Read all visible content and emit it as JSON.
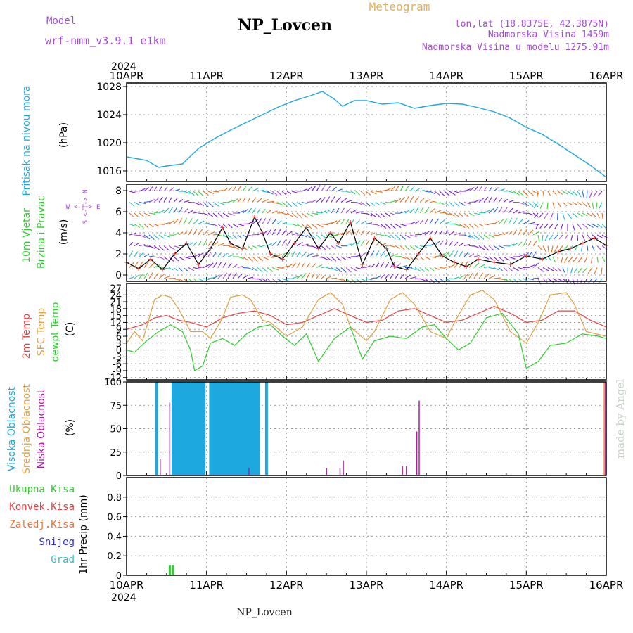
{
  "header": {
    "model_label": "Model",
    "model_name": "wrf-nmm_v3.9.1 e1km",
    "station": "NP_Lovcen",
    "title": "Meteogram",
    "lonlat": "lon,lat (18.8375E, 42.3875N)",
    "elev": "Nadmorska Visina 1459m",
    "elev_model": "Nadmorska Visina u modelu 1275.91m",
    "footer_station": "NP_Lovcen",
    "watermark": "made by Angel"
  },
  "time_axis": {
    "year": "2024",
    "ticks": [
      "10APR",
      "11APR",
      "12APR",
      "13APR",
      "14APR",
      "15APR",
      "16APR"
    ]
  },
  "labels": {
    "p1_name": "Pritisak na nivou mora",
    "p1_unit": "(hPa)",
    "p2_name1": "10m Vjetar",
    "p2_name2": "Brzina i Pravac",
    "p2_unit": "(m/s)",
    "p2_compass": "W <-|-> E",
    "p2_compass_v": "S <-|-> N",
    "p3_temp": "2m Temp",
    "p3_sfc": "SFC Temp",
    "p3_dew": "dewpt Temp",
    "p3_unit": "(C)",
    "p4_high": "Visoka Oblacnost",
    "p4_mid": "Srednja Oblacnost",
    "p4_low": "Niska Oblacnost",
    "p4_unit": "(%)",
    "p5_total": "Ukupna Kisa",
    "p5_conv": "Konvek.Kisa",
    "p5_frz": "Zaledj.Kisa",
    "p5_snow": "Snijeg",
    "p5_grad": "Grad",
    "p5_unit": "1hr Precip (mm)"
  },
  "colors": {
    "pressure": "#1ea8e0",
    "temp2m": "#e84040",
    "sfc": "#e0a040",
    "dew": "#30cc30",
    "high_cloud": "#1ea8e0",
    "mid_cloud": "#e0a040",
    "low_cloud": "#b01aa0",
    "precip": "#30cc30",
    "purple": "#a24ad6"
  },
  "chart_data": [
    {
      "type": "line",
      "x_unit": "day",
      "xlim": [
        0,
        6
      ],
      "ylim": [
        1014.5,
        1028.5
      ],
      "yticks": [
        1016,
        1020,
        1024,
        1028
      ],
      "grid": true,
      "series": [
        {
          "x": [
            0,
            0.25,
            0.4,
            0.5,
            0.7,
            0.9,
            1.1,
            1.3,
            1.5,
            1.7,
            1.9,
            2.1,
            2.3,
            2.45,
            2.6,
            2.7,
            2.85,
            3.0,
            3.2,
            3.4,
            3.6,
            3.8,
            4.0,
            4.2,
            4.4,
            4.6,
            4.8,
            5.0,
            5.2,
            5.4,
            5.6,
            5.8,
            6.0
          ],
          "y": [
            1018.0,
            1017.5,
            1016.5,
            1016.7,
            1017.0,
            1019.2,
            1020.6,
            1021.8,
            1022.9,
            1024.0,
            1025.1,
            1026.0,
            1026.7,
            1027.3,
            1026.2,
            1025.2,
            1026.0,
            1026.0,
            1025.5,
            1025.7,
            1024.9,
            1025.3,
            1025.6,
            1025.5,
            1025.0,
            1024.4,
            1023.5,
            1022.2,
            1021.2,
            1019.8,
            1018.3,
            1016.8,
            1015.1
          ]
        }
      ]
    },
    {
      "type": "line",
      "x_unit": "day",
      "xlim": [
        0,
        6
      ],
      "ylim": [
        -0.6,
        8.6
      ],
      "yticks": [
        0,
        2,
        4,
        6,
        8
      ],
      "grid": true,
      "series": [
        {
          "x": [
            0,
            0.15,
            0.3,
            0.45,
            0.6,
            0.75,
            0.9,
            1.05,
            1.2,
            1.3,
            1.45,
            1.6,
            1.7,
            1.8,
            1.95,
            2.1,
            2.25,
            2.4,
            2.55,
            2.65,
            2.8,
            2.95,
            3.1,
            3.25,
            3.35,
            3.5,
            3.65,
            3.8,
            3.95,
            4.1,
            4.25,
            4.4,
            4.6,
            4.8,
            5.0,
            5.2,
            5.4,
            5.55,
            5.7,
            5.85,
            6.0
          ],
          "y": [
            1.2,
            0.6,
            1.5,
            0.5,
            2.0,
            3.0,
            1.0,
            2.5,
            4.5,
            3.0,
            2.5,
            5.5,
            4.0,
            2.0,
            1.5,
            3.0,
            4.5,
            2.5,
            4.0,
            3.0,
            5.0,
            1.0,
            3.5,
            2.5,
            0.8,
            0.5,
            2.0,
            3.5,
            1.8,
            1.2,
            0.8,
            1.5,
            1.2,
            1.0,
            1.8,
            1.5,
            2.2,
            2.5,
            3.0,
            3.5,
            2.8
          ]
        }
      ]
    },
    {
      "type": "line",
      "x_unit": "day",
      "xlim": [
        0,
        6
      ],
      "ylim": [
        -13,
        29
      ],
      "yticks": [
        -12,
        -9,
        -6,
        -3,
        0,
        3,
        6,
        9,
        12,
        15,
        18,
        21,
        24,
        27
      ],
      "grid": true,
      "series": [
        {
          "x": [
            0,
            0.2,
            0.35,
            0.5,
            0.65,
            0.8,
            1.0,
            1.2,
            1.4,
            1.6,
            1.8,
            2.0,
            2.2,
            2.4,
            2.6,
            2.8,
            3.0,
            3.2,
            3.4,
            3.6,
            3.8,
            4.0,
            4.2,
            4.4,
            4.6,
            4.8,
            5.0,
            5.2,
            5.4,
            5.6,
            5.8,
            6.0
          ],
          "y": [
            9,
            11,
            14,
            15,
            13,
            12,
            10,
            14,
            16,
            17,
            15,
            11,
            12,
            15,
            18,
            15,
            12,
            13,
            17,
            18,
            15,
            12,
            13,
            16,
            19,
            16,
            12,
            13,
            17,
            17,
            13,
            10
          ]
        },
        {
          "x": [
            0,
            0.1,
            0.2,
            0.35,
            0.45,
            0.55,
            0.65,
            0.8,
            0.95,
            1.05,
            1.2,
            1.3,
            1.45,
            1.55,
            1.7,
            1.8,
            2.0,
            2.2,
            2.4,
            2.55,
            2.7,
            2.8,
            3.0,
            3.1,
            3.3,
            3.45,
            3.6,
            3.8,
            4.0,
            4.1,
            4.3,
            4.45,
            4.6,
            4.8,
            5.0,
            5.15,
            5.3,
            5.5,
            5.6,
            5.75,
            6.0
          ],
          "y": [
            3,
            8,
            4,
            22,
            24,
            23,
            18,
            8,
            8,
            5,
            14,
            23,
            24,
            22,
            13,
            12,
            6,
            10,
            22,
            25,
            20,
            10,
            4,
            8,
            22,
            25,
            20,
            8,
            5,
            12,
            24,
            26,
            22,
            8,
            3,
            12,
            24,
            25,
            20,
            8,
            6
          ]
        },
        {
          "x": [
            0,
            0.1,
            0.25,
            0.4,
            0.55,
            0.7,
            0.8,
            0.85,
            0.95,
            1.05,
            1.2,
            1.35,
            1.5,
            1.65,
            1.8,
            1.95,
            2.1,
            2.25,
            2.4,
            2.6,
            2.8,
            2.95,
            3.1,
            3.3,
            3.5,
            3.7,
            3.85,
            4.0,
            4.15,
            4.3,
            4.5,
            4.7,
            4.9,
            5.0,
            5.15,
            5.3,
            5.5,
            5.7,
            5.9,
            6.0
          ],
          "y": [
            0,
            -1,
            4,
            8,
            11,
            8,
            0,
            -9,
            -7,
            3,
            5,
            2,
            7,
            10,
            11,
            6,
            2,
            7,
            -5,
            5,
            10,
            -4,
            4,
            6,
            5,
            10,
            11,
            5,
            0,
            3,
            14,
            16,
            7,
            -8,
            -5,
            2,
            3,
            7,
            6,
            5
          ]
        }
      ]
    },
    {
      "type": "bar",
      "x_unit": "day",
      "xlim": [
        0,
        6
      ],
      "ylim": [
        0,
        100
      ],
      "yticks": [
        0,
        25,
        50,
        75,
        100
      ],
      "grid": true,
      "series": [
        {
          "name": "Visoka Oblacnost",
          "x": [
            0.375,
            0.58,
            0.61,
            0.64,
            0.67,
            0.7,
            0.73,
            0.76,
            0.79,
            0.82,
            0.85,
            0.88,
            0.91,
            0.94,
            0.97,
            1.05,
            1.08,
            1.11,
            1.14,
            1.17,
            1.2,
            1.23,
            1.26,
            1.29,
            1.32,
            1.35,
            1.38,
            1.41,
            1.44,
            1.47,
            1.5,
            1.53,
            1.56,
            1.59,
            1.62,
            1.65,
            1.75
          ],
          "values": [
            100,
            100,
            100,
            100,
            100,
            100,
            100,
            100,
            100,
            100,
            100,
            100,
            100,
            100,
            100,
            100,
            100,
            100,
            100,
            100,
            100,
            100,
            100,
            100,
            100,
            100,
            100,
            100,
            100,
            100,
            100,
            100,
            100,
            100,
            100,
            100,
            100
          ]
        },
        {
          "name": "Srednja Oblacnost",
          "x": [
            5.98
          ],
          "values": [
            100
          ]
        },
        {
          "name": "Niska Oblacnost",
          "x": [
            0.42,
            0.54,
            1.53,
            2.5,
            2.67,
            2.71,
            3.45,
            3.5,
            3.63,
            3.66,
            5.99
          ],
          "values": [
            18,
            78,
            8,
            8,
            8,
            16,
            10,
            10,
            47,
            80,
            100
          ]
        }
      ]
    },
    {
      "type": "bar",
      "x_unit": "day",
      "xlim": [
        0,
        6
      ],
      "ylim": [
        0,
        1.0
      ],
      "yticks": [
        0,
        0.2,
        0.4,
        0.6,
        0.8
      ],
      "grid": true,
      "series": [
        {
          "name": "Ukupna Kisa",
          "x": [
            0.54,
            0.58
          ],
          "values": [
            0.1,
            0.1
          ]
        }
      ]
    }
  ]
}
